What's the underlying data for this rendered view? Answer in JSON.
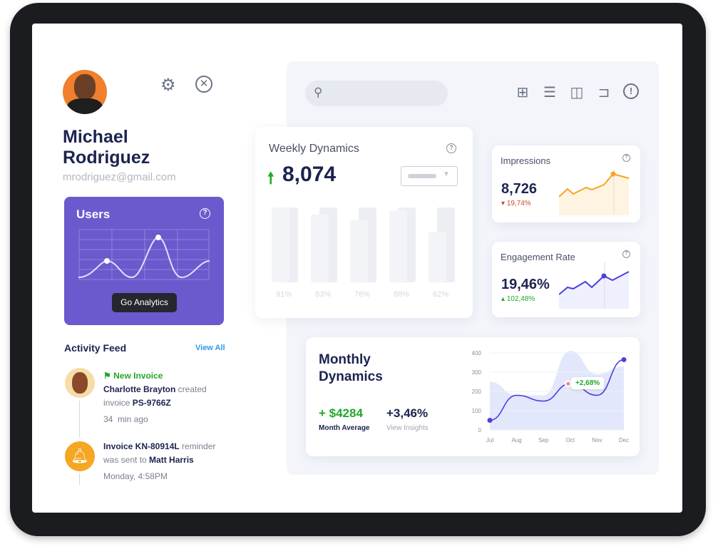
{
  "profile": {
    "name_first": "Michael",
    "name_last": "Rodriguez",
    "email": "mrodriguez@gmail.com"
  },
  "users_card": {
    "title": "Users",
    "button": "Go Analytics",
    "bg": "#6a5acd"
  },
  "activity": {
    "title": "Activity Feed",
    "view_all": "View All",
    "items": [
      {
        "tag": "New Invoice",
        "actor": "Charlotte Brayton",
        "text1": " created",
        "text2": "invoice ",
        "ref": "PS-9766Z",
        "time": "34  min ago"
      },
      {
        "ref": "Invoice KN-80914L",
        "text1": " reminder",
        "text2": "was sent to ",
        "target": "Matt Harris",
        "time": "Monday, 4:58PM"
      }
    ]
  },
  "search": {
    "placeholder": ""
  },
  "weekly": {
    "title": "Weekly Dynamics",
    "value": "8,074",
    "labels": [
      "91%",
      "83%",
      "76%",
      "88%",
      "62%"
    ]
  },
  "impressions": {
    "title": "Impressions",
    "value": "8,726",
    "change": "19,74%",
    "direction": "down"
  },
  "engagement": {
    "title": "Engagement Rate",
    "value": "19,46%",
    "change": "102,48%",
    "direction": "up"
  },
  "monthly": {
    "title1": "Monthly",
    "title2": "Dynamics",
    "avg_value": "+ $4284",
    "avg_label": "Month Average",
    "pct_value": "+3,46%",
    "pct_label": "View Insights",
    "tooltip": "+2,68%"
  },
  "chart_data": {
    "type": "line",
    "categories": [
      "Jul",
      "Aug",
      "Sep",
      "Oct",
      "Nov",
      "Dec"
    ],
    "yticks": [
      "400",
      "300",
      "200",
      "100",
      "0"
    ],
    "ylim": [
      0,
      400
    ],
    "series": [
      {
        "values": [
          50,
          180,
          150,
          240,
          180,
          365
        ]
      }
    ],
    "background_area": [
      250,
      180,
      180,
      410,
      290,
      330
    ],
    "grid": true
  },
  "colors": {
    "accent": "#4b3fe0",
    "green": "#22a82a",
    "orange": "#f5a623",
    "red": "#d0452a"
  }
}
